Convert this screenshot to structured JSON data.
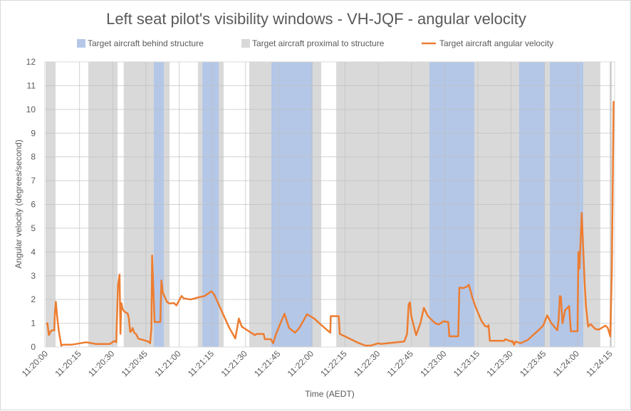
{
  "chart_data": {
    "type": "line",
    "title": "Left seat pilot's visibility windows - VH-JQF - angular velocity",
    "xlabel": "Time (AEDT)",
    "ylabel": "Angular velocity (degrees/second)",
    "ylim": [
      0,
      12
    ],
    "yticks": [
      "0",
      "1",
      "2",
      "3",
      "4",
      "5",
      "6",
      "7",
      "8",
      "9",
      "10",
      "11",
      "12"
    ],
    "x_unit": "seconds after 11:20:00",
    "xlim": [
      0,
      257
    ],
    "xticks": [
      "11:20:00",
      "11:20:15",
      "11:20:30",
      "11:20:45",
      "11:21:00",
      "11:21:15",
      "11:21:30",
      "11:21:45",
      "11:22:00",
      "11:22:15",
      "11:22:30",
      "11:22:45",
      "11:23:00",
      "11:23:15",
      "11:23:30",
      "11:23:45",
      "11:24:00",
      "11:24:15"
    ],
    "grid": true,
    "legend_position": "top",
    "legend": [
      {
        "label": "Target aircraft behind structure",
        "color": "#b4c7e7",
        "kind": "band"
      },
      {
        "label": "Target aircraft proximal to structure",
        "color": "#d9d9d9",
        "kind": "band"
      },
      {
        "label": "Target aircraft angular velocity",
        "color": "#ed7d31",
        "kind": "line"
      }
    ],
    "bands_proximal": [
      [
        0,
        4.2
      ],
      [
        19,
        32.2
      ],
      [
        35,
        55.7
      ],
      [
        68.5,
        80.1
      ],
      [
        91.7,
        124.2
      ],
      [
        131,
        213.6
      ],
      [
        213.6,
        250.3
      ],
      [
        254.5,
        255.5
      ]
    ],
    "bands_behind": [
      [
        48.6,
        53.1
      ],
      [
        70.5,
        77.9
      ],
      [
        101.7,
        120.3
      ],
      [
        173.1,
        193.4
      ],
      [
        213.6,
        225.2
      ],
      [
        227.5,
        242.6
      ]
    ],
    "series": [
      {
        "name": "Target aircraft angular velocity",
        "x": [
          0,
          0.5,
          1.2,
          1.9,
          2.5,
          3.6,
          3.9,
          4.3,
          5.0,
          5.7,
          6.8,
          7.5,
          11.6,
          18,
          22.3,
          28.7,
          30.7,
          31.6,
          32.4,
          33.1,
          33.5,
          33.9,
          34.5,
          35.2,
          36.8,
          37.3,
          37.9,
          38.6,
          39.0,
          39.7,
          40.5,
          41.6,
          43.7,
          46.1,
          46.9,
          47.5,
          47.8,
          48.9,
          51.5,
          52.0,
          52.6,
          54.5,
          55.5,
          57.7,
          58.8,
          61.1,
          62.0,
          65.2,
          68.4,
          71.6,
          74.6,
          75.9,
          78.1,
          82.4,
          85.4,
          87.0,
          88.3,
          90.9,
          94.2,
          95,
          98.2,
          98.7,
          101.4,
          102.5,
          103.8,
          107.6,
          109.7,
          112.4,
          114.3,
          117.8,
          121,
          124.2,
          128.3,
          128.5,
          132.1,
          132.6,
          134.9,
          140.3,
          144.0,
          146.7,
          150.0,
          151,
          161.7,
          163.0,
          163.7,
          164.3,
          164.9,
          167.1,
          169,
          170.6,
          172.4,
          175.7,
          177.3,
          179.4,
          181.6,
          182.1,
          186.1,
          186.6,
          188.5,
          190.2,
          190.9,
          192.6,
          193.9,
          196.6,
          198.2,
          199.3,
          199.8,
          200.4,
          206.8,
          207.4,
          210.0,
          210.5,
          211.4,
          211.9,
          214.3,
          217.5,
          222.3,
          224.5,
          226.3,
          228.2,
          230.9,
          231.5,
          232,
          232.5,
          233.2,
          234.4,
          236.2,
          237,
          240,
          240.4,
          240.9,
          241.9,
          243.2,
          243.8,
          244.8,
          245.9,
          248.0,
          249.6,
          252.6,
          253.7,
          254.8,
          255.5,
          256.3
        ],
        "values": [
          0.95,
          1.0,
          0.5,
          0.65,
          0.7,
          0.7,
          1.45,
          1.9,
          1.2,
          0.65,
          0.05,
          0.1,
          0.1,
          0.2,
          0.13,
          0.13,
          0.25,
          0.2,
          2.6,
          3.05,
          0.55,
          1.85,
          1.6,
          1.5,
          1.4,
          1.2,
          0.63,
          0.7,
          0.8,
          0.6,
          0.55,
          0.35,
          0.3,
          0.23,
          0.16,
          0.8,
          3.85,
          1.05,
          1.05,
          2.8,
          2.3,
          1.9,
          1.83,
          1.85,
          1.75,
          2.15,
          2.05,
          2.0,
          2.08,
          2.15,
          2.35,
          2.2,
          1.75,
          0.86,
          0.36,
          1.2,
          0.86,
          0.7,
          0.5,
          0.55,
          0.55,
          0.33,
          0.33,
          0.16,
          0.55,
          1.4,
          0.8,
          0.6,
          0.8,
          1.38,
          1.2,
          0.93,
          0.6,
          1.3,
          1.3,
          0.55,
          0.45,
          0.2,
          0.06,
          0.06,
          0.16,
          0.13,
          0.23,
          0.55,
          1.8,
          1.88,
          1.3,
          0.5,
          1.0,
          1.65,
          1.3,
          1.0,
          0.95,
          1.08,
          1.05,
          0.45,
          0.45,
          2.5,
          2.48,
          2.55,
          2.62,
          2.05,
          1.7,
          1.1,
          0.88,
          0.85,
          0.92,
          0.26,
          0.26,
          0.33,
          0.23,
          0.26,
          0.09,
          0.23,
          0.16,
          0.3,
          0.7,
          0.9,
          1.33,
          1.0,
          0.7,
          1.2,
          2.15,
          2.1,
          1.0,
          1.55,
          1.72,
          0.66,
          0.66,
          4.0,
          3.3,
          5.65,
          2.7,
          1.75,
          0.86,
          0.96,
          0.76,
          0.73,
          0.9,
          0.8,
          0.45,
          3.2,
          10.35
        ]
      }
    ]
  }
}
